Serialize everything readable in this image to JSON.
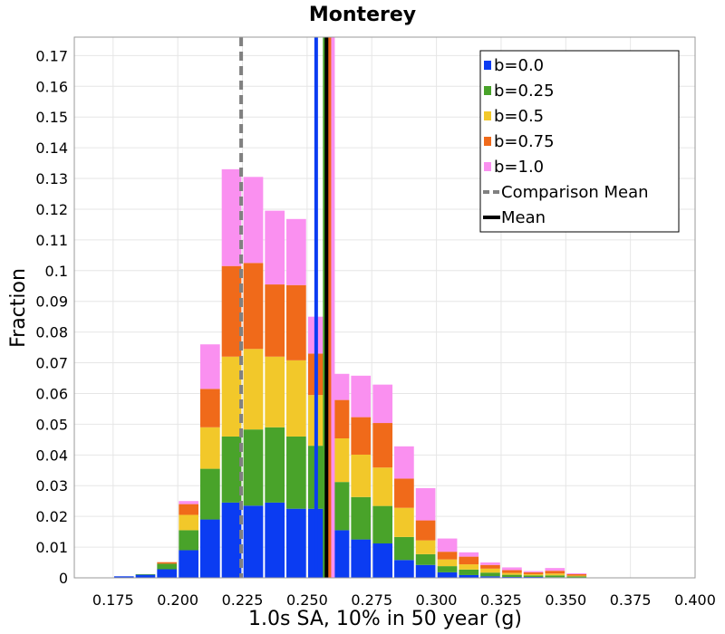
{
  "chart_data": {
    "type": "bar",
    "stacked": true,
    "title": "Monterey",
    "xlabel": "1.0s SA, 10% in 50 year (g)",
    "ylabel": "Fraction",
    "xlim": [
      0.16,
      0.4
    ],
    "ylim": [
      0,
      0.176
    ],
    "xticks": [
      "0.175",
      "0.200",
      "0.225",
      "0.250",
      "0.275",
      "0.300",
      "0.325",
      "0.350",
      "0.375",
      "0.400"
    ],
    "yticks": [
      "0",
      "0.01",
      "0.02",
      "0.03",
      "0.04",
      "0.05",
      "0.06",
      "0.07",
      "0.08",
      "0.09",
      "0.1",
      "0.11",
      "0.12",
      "0.13",
      "0.14",
      "0.15",
      "0.16",
      "0.17"
    ],
    "grid": true,
    "legend_position": "top-right",
    "bin_width": 0.0083,
    "bin_centers": [
      0.1708,
      0.1792,
      0.1875,
      0.1958,
      0.2042,
      0.2125,
      0.2208,
      0.2292,
      0.2375,
      0.2458,
      0.2542,
      0.2625,
      0.2708,
      0.2792,
      0.2875,
      0.2958,
      0.3042,
      0.3125,
      0.3208,
      0.3292,
      0.3375,
      0.3458,
      0.3542,
      0.3625,
      0.3708,
      0.3792
    ],
    "series": [
      {
        "name": "b=0.0",
        "color": "#0b3cf2",
        "values": [
          0,
          0.0005,
          0.001,
          0.0028,
          0.009,
          0.019,
          0.0245,
          0.0235,
          0.0245,
          0.0225,
          0.0225,
          0.0155,
          0.0125,
          0.0112,
          0.0058,
          0.0042,
          0.0018,
          0.0009,
          0.0005,
          0.0003,
          0.0003,
          0.0002,
          0.0001,
          0,
          0,
          0
        ]
      },
      {
        "name": "b=0.25",
        "color": "#49a32a",
        "values": [
          0,
          0,
          0.0002,
          0.0018,
          0.0065,
          0.0165,
          0.0215,
          0.0248,
          0.0245,
          0.0235,
          0.0205,
          0.0157,
          0.0138,
          0.0122,
          0.0075,
          0.0035,
          0.002,
          0.0018,
          0.0012,
          0.0007,
          0.0005,
          0.0006,
          0.0004,
          0,
          0,
          0
        ]
      },
      {
        "name": "b=0.5",
        "color": "#f2c82a",
        "values": [
          0,
          0,
          0,
          0,
          0.005,
          0.0135,
          0.026,
          0.0262,
          0.023,
          0.0248,
          0.0165,
          0.0142,
          0.0138,
          0.0125,
          0.0095,
          0.0045,
          0.0022,
          0.0017,
          0.0013,
          0.0006,
          0.0004,
          0.0006,
          0.0002,
          0,
          0,
          0
        ]
      },
      {
        "name": "b=0.75",
        "color": "#f06a1a",
        "values": [
          0,
          0,
          0,
          0.0005,
          0.0035,
          0.0125,
          0.0295,
          0.028,
          0.0235,
          0.0245,
          0.0135,
          0.0125,
          0.0122,
          0.0145,
          0.0095,
          0.0065,
          0.0025,
          0.0025,
          0.0012,
          0.0009,
          0.0006,
          0.0009,
          0.0005,
          0,
          0,
          0
        ]
      },
      {
        "name": "b=1.0",
        "color": "#fa90f0",
        "values": [
          0,
          0,
          0,
          0,
          0.001,
          0.0145,
          0.0315,
          0.028,
          0.024,
          0.0215,
          0.012,
          0.0085,
          0.0135,
          0.0125,
          0.0105,
          0.0105,
          0.0043,
          0.0014,
          0.0008,
          0.0009,
          0.0004,
          0.0009,
          0.0003,
          0,
          0,
          0
        ]
      }
    ],
    "reference_lines": [
      {
        "name": "b=0.0",
        "x": 0.2535,
        "color": "#0b3cf2",
        "style": "solid"
      },
      {
        "name": "b=0.25",
        "x": 0.2568,
        "color": "#49a32a",
        "style": "solid"
      },
      {
        "name": "b=0.5",
        "x": 0.2578,
        "color": "#f2c82a",
        "style": "solid"
      },
      {
        "name": "b=0.75",
        "x": 0.2588,
        "color": "#f06a1a",
        "style": "solid"
      },
      {
        "name": "b=1.0",
        "x": 0.26,
        "color": "#fa90f0",
        "style": "solid"
      },
      {
        "name": "Comparison Mean",
        "x": 0.2245,
        "color": "#808080",
        "style": "dashed"
      },
      {
        "name": "Mean",
        "x": 0.2575,
        "color": "#000000",
        "style": "solid"
      }
    ],
    "legend": [
      {
        "label": "b=0.0",
        "color": "#0b3cf2",
        "kind": "box"
      },
      {
        "label": "b=0.25",
        "color": "#49a32a",
        "kind": "box"
      },
      {
        "label": "b=0.5",
        "color": "#f2c82a",
        "kind": "box"
      },
      {
        "label": "b=0.75",
        "color": "#f06a1a",
        "kind": "box"
      },
      {
        "label": "b=1.0",
        "color": "#fa90f0",
        "kind": "box"
      },
      {
        "label": "Comparison Mean",
        "color": "#808080",
        "kind": "dashed"
      },
      {
        "label": "Mean",
        "color": "#000000",
        "kind": "line"
      }
    ]
  }
}
